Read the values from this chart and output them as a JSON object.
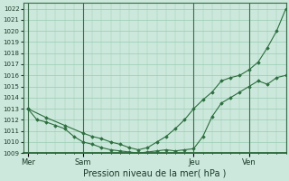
{
  "background_color": "#cce8dc",
  "grid_color": "#99ccb3",
  "line_color": "#2d6e3e",
  "marker_color": "#2d6e3e",
  "xlabel": "Pression niveau de la mer( hPa )",
  "ylim": [
    1009,
    1022.5
  ],
  "yticks": [
    1009,
    1010,
    1011,
    1012,
    1013,
    1014,
    1015,
    1016,
    1017,
    1018,
    1019,
    1020,
    1021,
    1022
  ],
  "xtick_labels": [
    "Mer",
    "Sam",
    "Jeu",
    "Ven"
  ],
  "xtick_positions": [
    0,
    12,
    36,
    48
  ],
  "xvlines": [
    0,
    12,
    36,
    48
  ],
  "xlim": [
    -1,
    56
  ],
  "series1_x": [
    0,
    2,
    4,
    6,
    8,
    10,
    12,
    14,
    16,
    18,
    20,
    22,
    24,
    26,
    28,
    30,
    32,
    34,
    36,
    38,
    40,
    42,
    44,
    46,
    48,
    50,
    52,
    54,
    56
  ],
  "series1_y": [
    1013.0,
    1012.0,
    1011.8,
    1011.5,
    1011.2,
    1010.5,
    1010.0,
    1009.8,
    1009.5,
    1009.3,
    1009.2,
    1009.1,
    1009.0,
    1009.1,
    1009.2,
    1009.3,
    1009.2,
    1009.3,
    1009.4,
    1010.5,
    1012.3,
    1013.5,
    1014.0,
    1014.5,
    1015.0,
    1015.5,
    1015.2,
    1015.8,
    1016.0
  ],
  "series2_x": [
    0,
    4,
    8,
    12,
    14,
    16,
    18,
    20,
    22,
    24,
    26,
    28,
    30,
    32,
    34,
    36,
    38,
    40,
    42,
    44,
    46,
    48,
    50,
    52,
    54,
    56
  ],
  "series2_y": [
    1013.0,
    1012.2,
    1011.5,
    1010.8,
    1010.5,
    1010.3,
    1010.0,
    1009.8,
    1009.5,
    1009.3,
    1009.5,
    1010.0,
    1010.5,
    1011.2,
    1012.0,
    1013.0,
    1013.8,
    1014.5,
    1015.5,
    1015.8,
    1016.0,
    1016.5,
    1017.2,
    1018.5,
    1020.0,
    1022.0
  ]
}
